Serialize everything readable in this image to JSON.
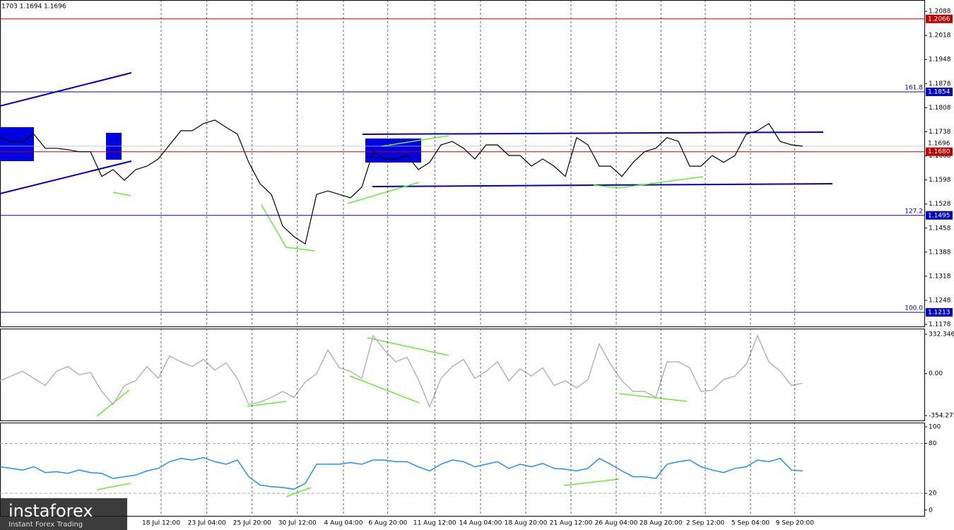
{
  "header": "1703 1.1694 1.1696",
  "watermark": {
    "brand": "instaforex",
    "tagline": "Instant Forex Trading"
  },
  "chart_data": [
    {
      "type": "line",
      "color": "#000000",
      "xlim": [
        0,
        163.5
      ],
      "ylim": [
        1.1172,
        1.2121
      ],
      "yticks": [
        1.2088,
        1.2018,
        1.1948,
        1.1878,
        1.1808,
        1.1738,
        1.1668,
        1.1598,
        1.1528,
        1.1458,
        1.1388,
        1.1318,
        1.1248,
        1.1178
      ],
      "last_price": 1.1696,
      "hlines": [
        {
          "value": 1.2066,
          "color": "#c00000"
        },
        {
          "value": 1.1854,
          "color": "#0000c0",
          "fib": "161.8"
        },
        {
          "value": 1.168,
          "label": "1.1680",
          "color": "#c00000"
        },
        {
          "value": 1.1495,
          "color": "#0000c0",
          "fib": "127.2"
        },
        {
          "value": 1.1213,
          "color": "#0000c0",
          "fib": "100.0"
        }
      ],
      "x": [
        0,
        2,
        4,
        6,
        8,
        10,
        12,
        14,
        16,
        18,
        20,
        22,
        24,
        26,
        28,
        30,
        32,
        34,
        36,
        38,
        40,
        42,
        44,
        46,
        48,
        50,
        52,
        54,
        56,
        58,
        60,
        62,
        64,
        66,
        68,
        70,
        72,
        74,
        76,
        78,
        80,
        82,
        84,
        86,
        88,
        90,
        92,
        94,
        96,
        98,
        100,
        102,
        104,
        106,
        108,
        110,
        112,
        114,
        116,
        118,
        120,
        122,
        124,
        126,
        128,
        130,
        132,
        134,
        136,
        138,
        140,
        142
      ],
      "values": [
        1.1721,
        1.171,
        1.171,
        1.1731,
        1.169,
        1.169,
        1.1686,
        1.168,
        1.168,
        1.1608,
        1.1628,
        1.1597,
        1.1628,
        1.1638,
        1.1659,
        1.17,
        1.1741,
        1.1741,
        1.1762,
        1.1772,
        1.1751,
        1.1731,
        1.1649,
        1.1587,
        1.1556,
        1.1464,
        1.1433,
        1.1412,
        1.1556,
        1.1566,
        1.1556,
        1.1546,
        1.1577,
        1.168,
        1.1659,
        1.1659,
        1.1669,
        1.1628,
        1.1649,
        1.17,
        1.171,
        1.169,
        1.1659,
        1.17,
        1.17,
        1.1669,
        1.1669,
        1.1638,
        1.1659,
        1.1638,
        1.1608,
        1.1721,
        1.17,
        1.1638,
        1.1638,
        1.1608,
        1.1649,
        1.168,
        1.169,
        1.1721,
        1.171,
        1.1638,
        1.1638,
        1.1669,
        1.1649,
        1.1669,
        1.1731,
        1.1741,
        1.1762,
        1.171,
        1.17,
        1.1696
      ]
    },
    {
      "type": "line",
      "color": "#b4b4b4",
      "xlim": [
        0,
        163.5
      ],
      "ylim": [
        -395,
        380
      ],
      "yticks": [
        332.3467,
        {
          "value": 0,
          "label": "0.00"
        },
        -354.2759
      ],
      "x": [
        0,
        2,
        4,
        6,
        8,
        10,
        12,
        14,
        16,
        18,
        20,
        22,
        24,
        26,
        28,
        30,
        32,
        34,
        36,
        38,
        40,
        42,
        44,
        46,
        48,
        50,
        52,
        54,
        56,
        58,
        60,
        62,
        64,
        66,
        68,
        70,
        72,
        74,
        76,
        78,
        80,
        82,
        84,
        86,
        88,
        90,
        92,
        94,
        96,
        98,
        100,
        102,
        104,
        106,
        108,
        110,
        112,
        114,
        116,
        118,
        120,
        122,
        124,
        126,
        128,
        130,
        132,
        134,
        136,
        138,
        140,
        142
      ],
      "values": [
        -60,
        -20,
        20,
        -40,
        -100,
        20,
        60,
        -10,
        10,
        -150,
        -260,
        -100,
        -60,
        60,
        -40,
        150,
        100,
        60,
        120,
        30,
        90,
        -40,
        -260,
        -240,
        -200,
        -150,
        -200,
        -70,
        0,
        200,
        50,
        20,
        -40,
        320,
        200,
        100,
        140,
        -50,
        -280,
        -40,
        60,
        120,
        -40,
        20,
        100,
        -60,
        40,
        -20,
        50,
        -100,
        -60,
        -120,
        -50,
        250,
        80,
        -60,
        -150,
        -150,
        -200,
        100,
        100,
        50,
        -150,
        -140,
        -50,
        -20,
        80,
        320,
        100,
        20,
        -100,
        -80
      ]
    },
    {
      "type": "line",
      "color": "#1e90ff",
      "xlim": [
        0,
        163.5
      ],
      "ylim": [
        -7,
        105
      ],
      "yticks": [
        100,
        80,
        20,
        0
      ],
      "dashed_levels": [
        80,
        20
      ],
      "xticks": [
        {
          "value": 28.5,
          "label": "18 Jul 12:00"
        },
        {
          "value": 36.6,
          "label": "23 Jul 04:00"
        },
        {
          "value": 44.6,
          "label": "25 Jul 20:00"
        },
        {
          "value": 52.6,
          "label": "30 Jul 12:00"
        },
        {
          "value": 60.75,
          "label": "4 Aug 04:00"
        },
        {
          "value": 68.6,
          "label": "6 Aug 20:00"
        },
        {
          "value": 76.9,
          "label": "11 Aug 12:00"
        },
        {
          "value": 85,
          "label": "14 Aug 04:00"
        },
        {
          "value": 93,
          "label": "18 Aug 20:00"
        },
        {
          "value": 101,
          "label": "21 Aug 12:00"
        },
        {
          "value": 109,
          "label": "26 Aug 04:00"
        },
        {
          "value": 116.9,
          "label": "28 Aug 20:00"
        },
        {
          "value": 124.75,
          "label": "2 Sep 12:00"
        },
        {
          "value": 132.75,
          "label": "5 Sep 04:00"
        },
        {
          "value": 140.6,
          "label": "9 Sep 20:00"
        }
      ],
      "x": [
        0,
        2,
        4,
        6,
        8,
        10,
        12,
        14,
        16,
        18,
        20,
        22,
        24,
        26,
        28,
        30,
        32,
        34,
        36,
        38,
        40,
        42,
        44,
        46,
        48,
        50,
        52,
        54,
        56,
        58,
        60,
        62,
        64,
        66,
        68,
        70,
        72,
        74,
        76,
        78,
        80,
        82,
        84,
        86,
        88,
        90,
        92,
        94,
        96,
        98,
        100,
        102,
        104,
        106,
        108,
        110,
        112,
        114,
        116,
        118,
        120,
        122,
        124,
        126,
        128,
        130,
        132,
        134,
        136,
        138,
        140,
        142
      ],
      "values": [
        52,
        50,
        48,
        52,
        45,
        46,
        44,
        48,
        45,
        44,
        38,
        40,
        42,
        47,
        50,
        58,
        62,
        60,
        63,
        58,
        55,
        60,
        40,
        30,
        28,
        27,
        25,
        32,
        55,
        55,
        55,
        57,
        55,
        60,
        60,
        58,
        58,
        52,
        47,
        55,
        60,
        58,
        52,
        55,
        58,
        50,
        55,
        52,
        56,
        50,
        49,
        47,
        50,
        62,
        55,
        47,
        40,
        40,
        38,
        55,
        58,
        60,
        52,
        48,
        45,
        50,
        52,
        60,
        58,
        62,
        48,
        47
      ]
    }
  ]
}
